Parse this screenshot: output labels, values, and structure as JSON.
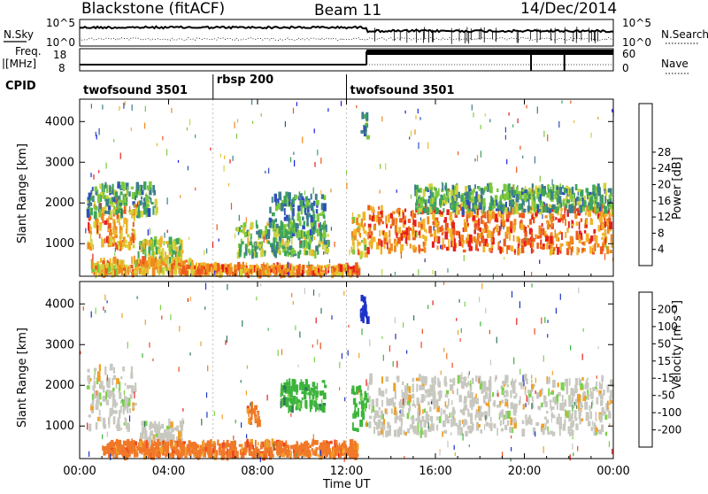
{
  "header": {
    "title": "Blackstone (fitACF)",
    "beam": "Beam 11",
    "date": "14/Dec/2014"
  },
  "top_panel": {
    "left_label": "N.Sky",
    "right_label": "N.Search",
    "left_ticks": [
      "10^5",
      "10^0"
    ],
    "right_ticks": [
      "10^5",
      "10^0"
    ]
  },
  "freq_panel": {
    "left_label": "Freq.",
    "left_unit": "[MHz]",
    "right_label": "Nave",
    "left_ticks": [
      "18",
      "8"
    ],
    "right_ticks": [
      "60",
      "0"
    ]
  },
  "cpid_panel": {
    "label": "CPID",
    "modes": [
      {
        "name": "twofsound 3501",
        "start_hour": 0
      },
      {
        "name": "rbsp 200",
        "start_hour": 6
      },
      {
        "name": "twofsound 3501",
        "start_hour": 12
      }
    ]
  },
  "x_axis": {
    "label": "Time UT",
    "ticks": [
      "00:00",
      "04:00",
      "08:00",
      "12:00",
      "16:00",
      "20:00",
      "00:00"
    ]
  },
  "chart_data": [
    {
      "type": "heatmap",
      "title": "",
      "xlabel": "Time UT",
      "ylabel": "Slant Range [km]",
      "xlim": [
        0,
        24
      ],
      "ylim": [
        200,
        4550
      ],
      "yticks": [
        "1000",
        "2000",
        "3000",
        "4000"
      ],
      "colorbar": {
        "label": "Power [dB]",
        "ticks": [
          "4",
          "8",
          "12",
          "16",
          "20",
          "24",
          "28"
        ],
        "colors": [
          "#1e1ee8",
          "#2e50b8",
          "#3c7e8c",
          "#3ea45c",
          "#7cc83c",
          "#d2d23c",
          "#f0b428",
          "#f08a1e",
          "#ec5a1e",
          "#e61e1e"
        ]
      },
      "echo_regions": [
        {
          "t0": 0.3,
          "t1": 2.5,
          "r0": 900,
          "r1": 1900,
          "dB": 22
        },
        {
          "t0": 0.3,
          "t1": 3.4,
          "r0": 1700,
          "r1": 2450,
          "dB": 10
        },
        {
          "t0": 2.6,
          "t1": 4.6,
          "r0": 550,
          "r1": 1100,
          "dB": 14
        },
        {
          "t0": 0.5,
          "t1": 5.0,
          "r0": 250,
          "r1": 600,
          "dB": 20
        },
        {
          "t0": 5.0,
          "t1": 12.5,
          "r0": 250,
          "r1": 450,
          "dB": 22
        },
        {
          "t0": 7.0,
          "t1": 11.2,
          "r0": 700,
          "r1": 1500,
          "dB": 12
        },
        {
          "t0": 8.5,
          "t1": 11.0,
          "r0": 1200,
          "r1": 2200,
          "dB": 8
        },
        {
          "t0": 12.2,
          "t1": 12.8,
          "r0": 700,
          "r1": 1700,
          "dB": 18
        },
        {
          "t0": 12.6,
          "t1": 12.9,
          "r0": 3600,
          "r1": 4200,
          "dB": 10
        },
        {
          "t0": 12.9,
          "t1": 23.9,
          "r0": 800,
          "r1": 1900,
          "dB": 24
        },
        {
          "t0": 15.0,
          "t1": 23.9,
          "r0": 1800,
          "r1": 2400,
          "dB": 10
        }
      ]
    },
    {
      "type": "heatmap",
      "title": "",
      "xlabel": "Time UT",
      "ylabel": "Slant Range [km]",
      "xlim": [
        0,
        24
      ],
      "ylim": [
        200,
        4550
      ],
      "yticks": [
        "1000",
        "2000",
        "3000",
        "4000"
      ],
      "colorbar": {
        "label": "Velocity [m s⁻¹]",
        "ticks": [
          "200",
          "100",
          "50",
          "15",
          "-15",
          "-50",
          "-100",
          "-200"
        ],
        "colors": [
          "#1e32c8",
          "#2e7a5a",
          "#3cb43c",
          "#7cd24a",
          "#c8c8c0",
          "#f0a028",
          "#f07828",
          "#ec4a1e",
          "#e61e1e"
        ]
      },
      "echo_regions": [
        {
          "t0": 0.3,
          "t1": 2.5,
          "r0": 900,
          "r1": 2450,
          "v": 0
        },
        {
          "t0": 2.6,
          "t1": 4.6,
          "r0": 550,
          "r1": 1100,
          "v": 0
        },
        {
          "t0": 1.0,
          "t1": 12.5,
          "r0": 250,
          "r1": 600,
          "v": -50
        },
        {
          "t0": 7.5,
          "t1": 8.0,
          "r0": 1000,
          "r1": 1500,
          "v": -50
        },
        {
          "t0": 9.0,
          "t1": 11.0,
          "r0": 1400,
          "r1": 2100,
          "v": 50
        },
        {
          "t0": 12.2,
          "t1": 12.9,
          "r0": 900,
          "r1": 2000,
          "v": 50
        },
        {
          "t0": 12.6,
          "t1": 12.9,
          "r0": 3600,
          "r1": 4200,
          "v": 200
        },
        {
          "t0": 12.9,
          "t1": 23.9,
          "r0": 800,
          "r1": 2200,
          "v": 0
        }
      ]
    }
  ]
}
